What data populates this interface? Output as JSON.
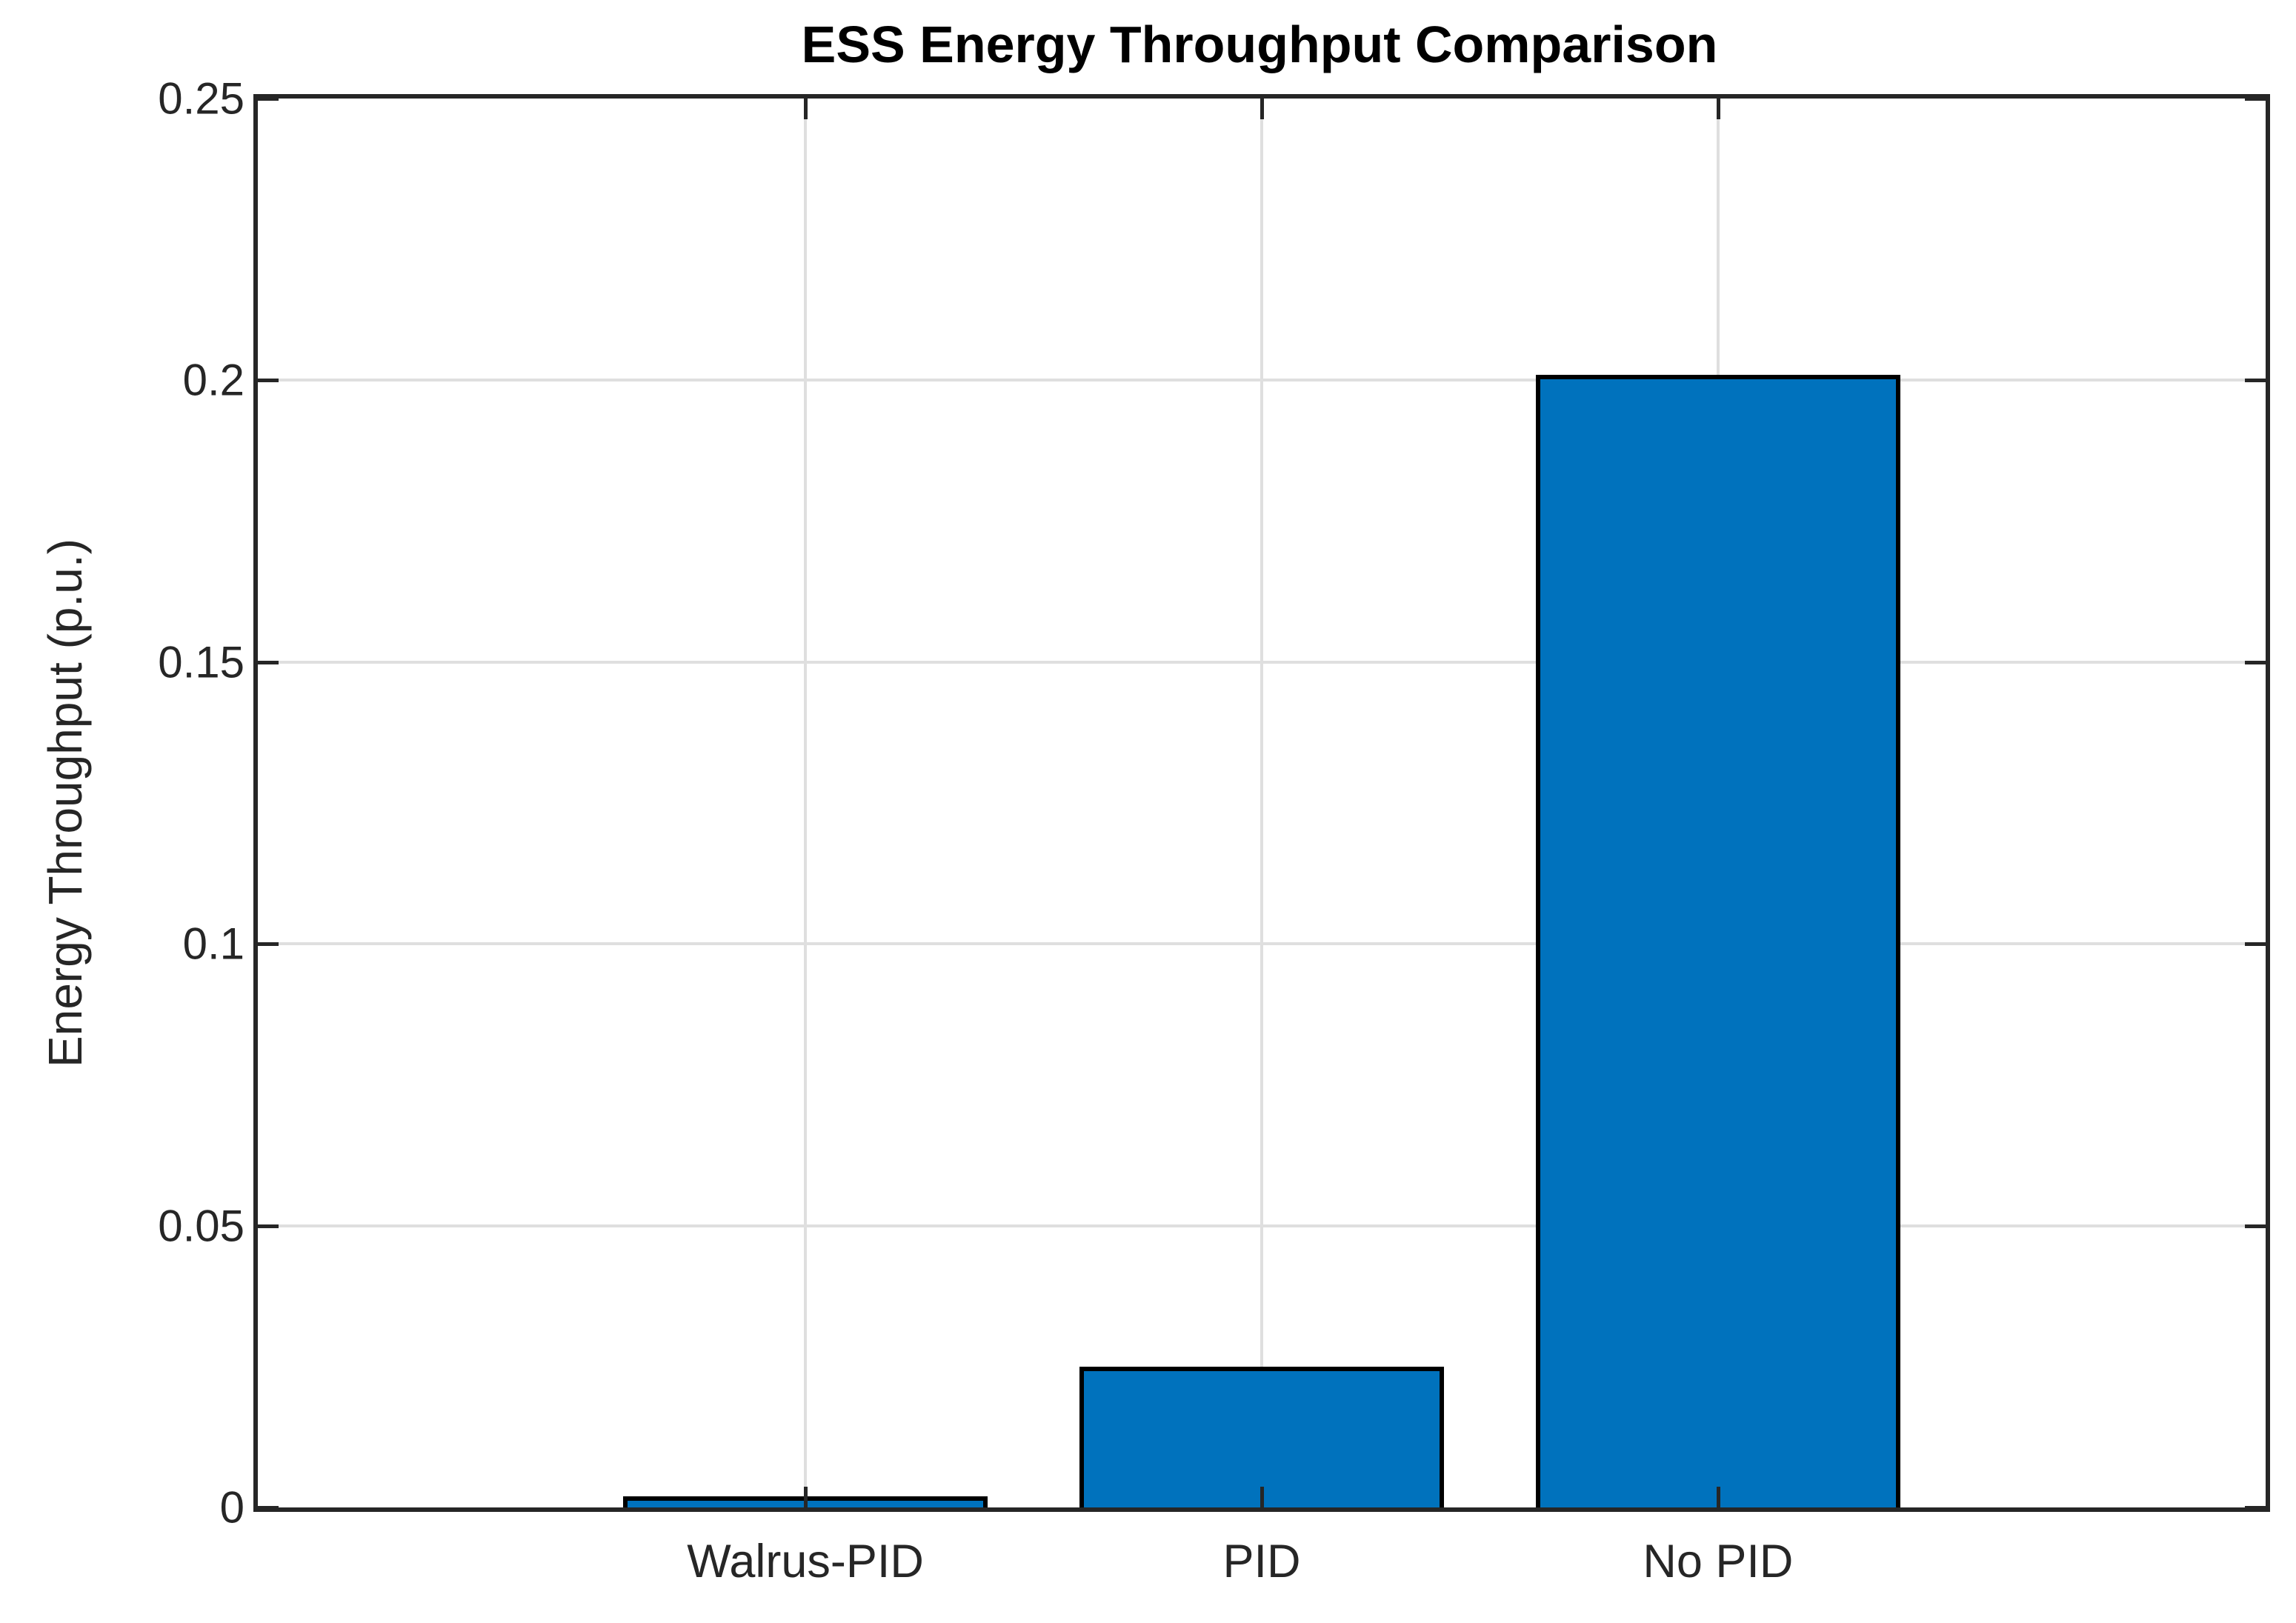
{
  "chart_data": {
    "type": "bar",
    "title": "ESS Energy Throughput Comparison",
    "xlabel": "",
    "ylabel": "Energy Throughput (p.u.)",
    "categories": [
      "Walrus-PID",
      "PID",
      "No PID"
    ],
    "values": [
      0.002,
      0.025,
      0.201
    ],
    "ylim": [
      0,
      0.25
    ],
    "yticks": [
      0,
      0.05,
      0.1,
      0.15,
      0.2,
      0.25
    ],
    "ytick_labels": [
      "0",
      "0.05",
      "0.1",
      "0.15",
      "0.2",
      "0.25"
    ],
    "xlim": [
      -0.2,
      4.2
    ],
    "bar_width_units": 0.8,
    "grid": true,
    "legend": null,
    "colors": {
      "bar_fill": "#0072BD",
      "bar_edge": "#000000",
      "axis": "#262626",
      "grid": "#DFDFDF",
      "title": "#000000",
      "background": "#FFFFFF"
    }
  }
}
